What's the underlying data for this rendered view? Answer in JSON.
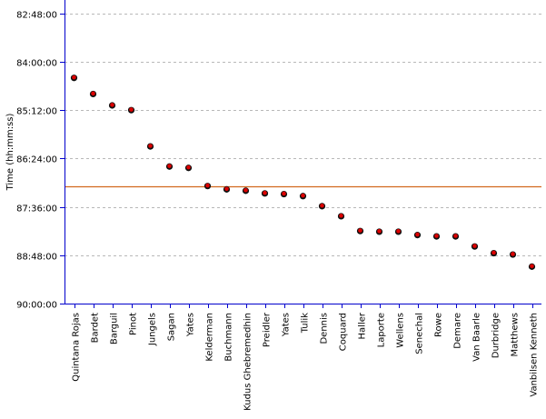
{
  "chart_data": {
    "type": "scatter",
    "ylabel": "Time (hh:mm:ss)",
    "y_axis_inverted": true,
    "ylim_seconds": [
      296880,
      324000
    ],
    "y_ticks": [
      {
        "label": "82:48:00",
        "seconds": 298080
      },
      {
        "label": "84:00:00",
        "seconds": 302400
      },
      {
        "label": "85:12:00",
        "seconds": 306720
      },
      {
        "label": "86:24:00",
        "seconds": 311040
      },
      {
        "label": "87:36:00",
        "seconds": 315360
      },
      {
        "label": "88:48:00",
        "seconds": 319680
      },
      {
        "label": "90:00:00",
        "seconds": 324000
      }
    ],
    "reference_line": {
      "value": "87:05:00",
      "seconds": 313500,
      "color": "#d2691e"
    },
    "categories": [
      "Quintana Rojas",
      "Bardet",
      "Barguil",
      "Pinot",
      "Jungels",
      "Sagan",
      "Yates",
      "Kelderman",
      "Buchmann",
      "Kudus Ghebremedhin",
      "Preidler",
      "Yates",
      "Tulik",
      "Dennis",
      "Coquard",
      "Haller",
      "Laporte",
      "Wellens",
      "Senechal",
      "Rowe",
      "Demare",
      "Van Baarle",
      "Durbridge",
      "Matthews",
      "Vanbilsen Kenneth"
    ],
    "values": [
      "84:24:00",
      "84:48:00",
      "85:05:00",
      "85:12:00",
      "86:06:00",
      "86:36:00",
      "86:38:00",
      "87:05:00",
      "87:10:00",
      "87:12:00",
      "87:16:00",
      "87:17:00",
      "87:20:00",
      "87:35:00",
      "87:50:00",
      "88:12:00",
      "88:13:00",
      "88:13:00",
      "88:18:00",
      "88:20:00",
      "88:20:00",
      "88:35:00",
      "88:45:00",
      "88:47:00",
      "89:05:00"
    ],
    "marker_color": "#dd0000",
    "grid": true
  }
}
